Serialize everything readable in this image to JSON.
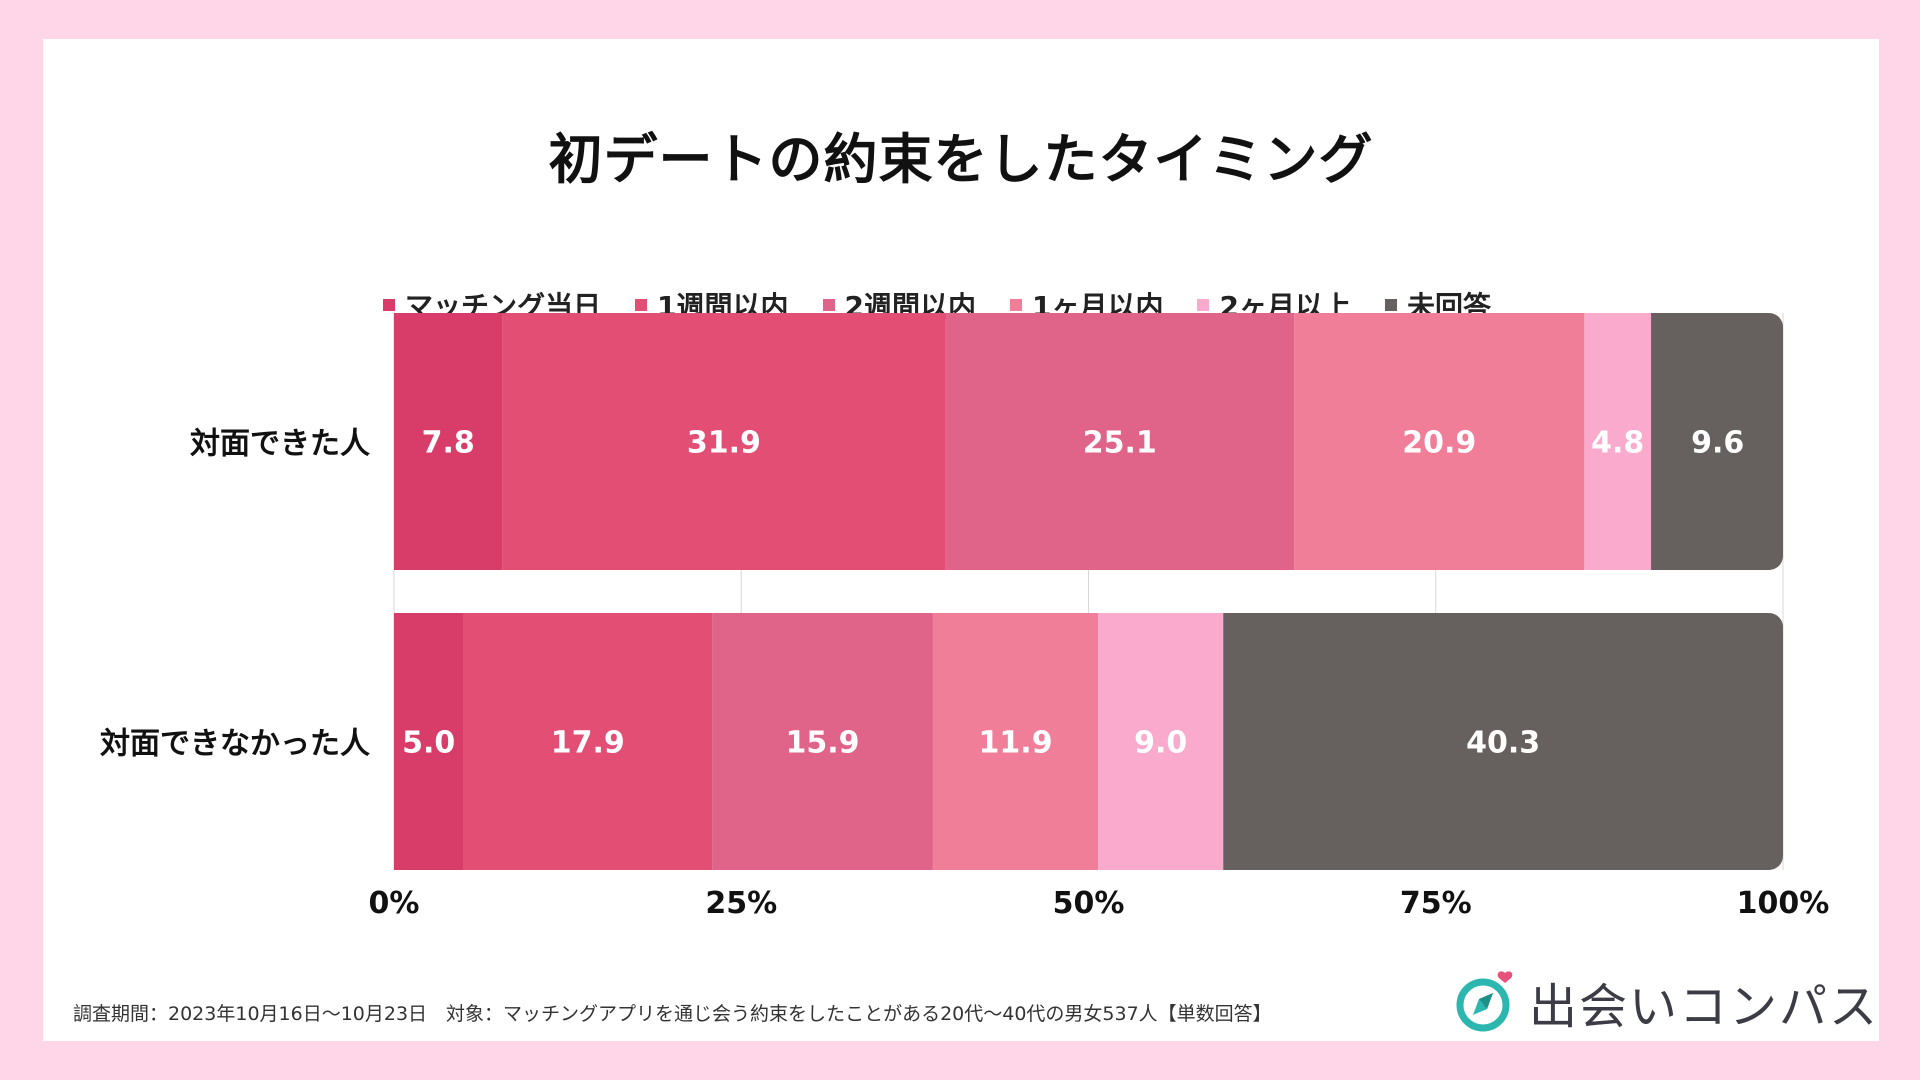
{
  "colors": {
    "page_bg": "#FFD6E7",
    "card_bg": "#FFFFFF",
    "logo_teal": "#2BB7B0",
    "logo_pink": "#E8517A"
  },
  "chart_data": {
    "type": "stacked-bar-horizontal-100",
    "title": "初デートの約束をしたタイミング",
    "legend_position": "top",
    "series": [
      {
        "name": "マッチング当日",
        "color": "#D83D6A",
        "values": [
          7.8,
          5.0
        ]
      },
      {
        "name": "1週間以内",
        "color": "#E24E74",
        "values": [
          31.9,
          17.9
        ]
      },
      {
        "name": "2週間以内",
        "color": "#E0648A",
        "values": [
          25.1,
          15.9
        ]
      },
      {
        "name": "1ヶ月以内",
        "color": "#F07E99",
        "values": [
          20.9,
          11.9
        ]
      },
      {
        "name": "2ヶ月以上",
        "color": "#F9AACD",
        "values": [
          4.8,
          9.0
        ]
      },
      {
        "name": "未回答",
        "color": "#66615F",
        "values": [
          9.6,
          40.3
        ]
      }
    ],
    "categories": [
      "対面できた人",
      "対面できなかった人"
    ],
    "value_labels": [
      [
        "7.8",
        "31.9",
        "25.1",
        "20.9",
        "4.8",
        "9.6"
      ],
      [
        "5.0",
        "17.9",
        "15.9",
        "11.9",
        "9.0",
        "40.3"
      ]
    ],
    "xlim": [
      0,
      100
    ],
    "x_ticks": [
      "0%",
      "25%",
      "50%",
      "75%",
      "100%"
    ],
    "grid": true
  },
  "footnote": "調査期間：2023年10月16日〜10月23日　対象：マッチングアプリを通じ会う約束をしたことがある20代〜40代の男女537人【単数回答】",
  "logo": {
    "icon": "compass-heart-icon",
    "text": "出会いコンパス"
  }
}
